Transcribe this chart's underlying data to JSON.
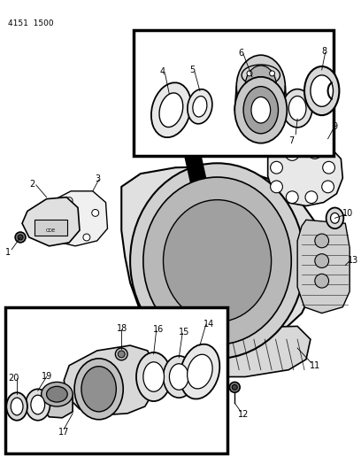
{
  "part_number_label": "4151  1500",
  "bg_color": "#ffffff",
  "line_color": "#000000",
  "fig_width": 4.08,
  "fig_height": 5.33,
  "dpi": 100
}
